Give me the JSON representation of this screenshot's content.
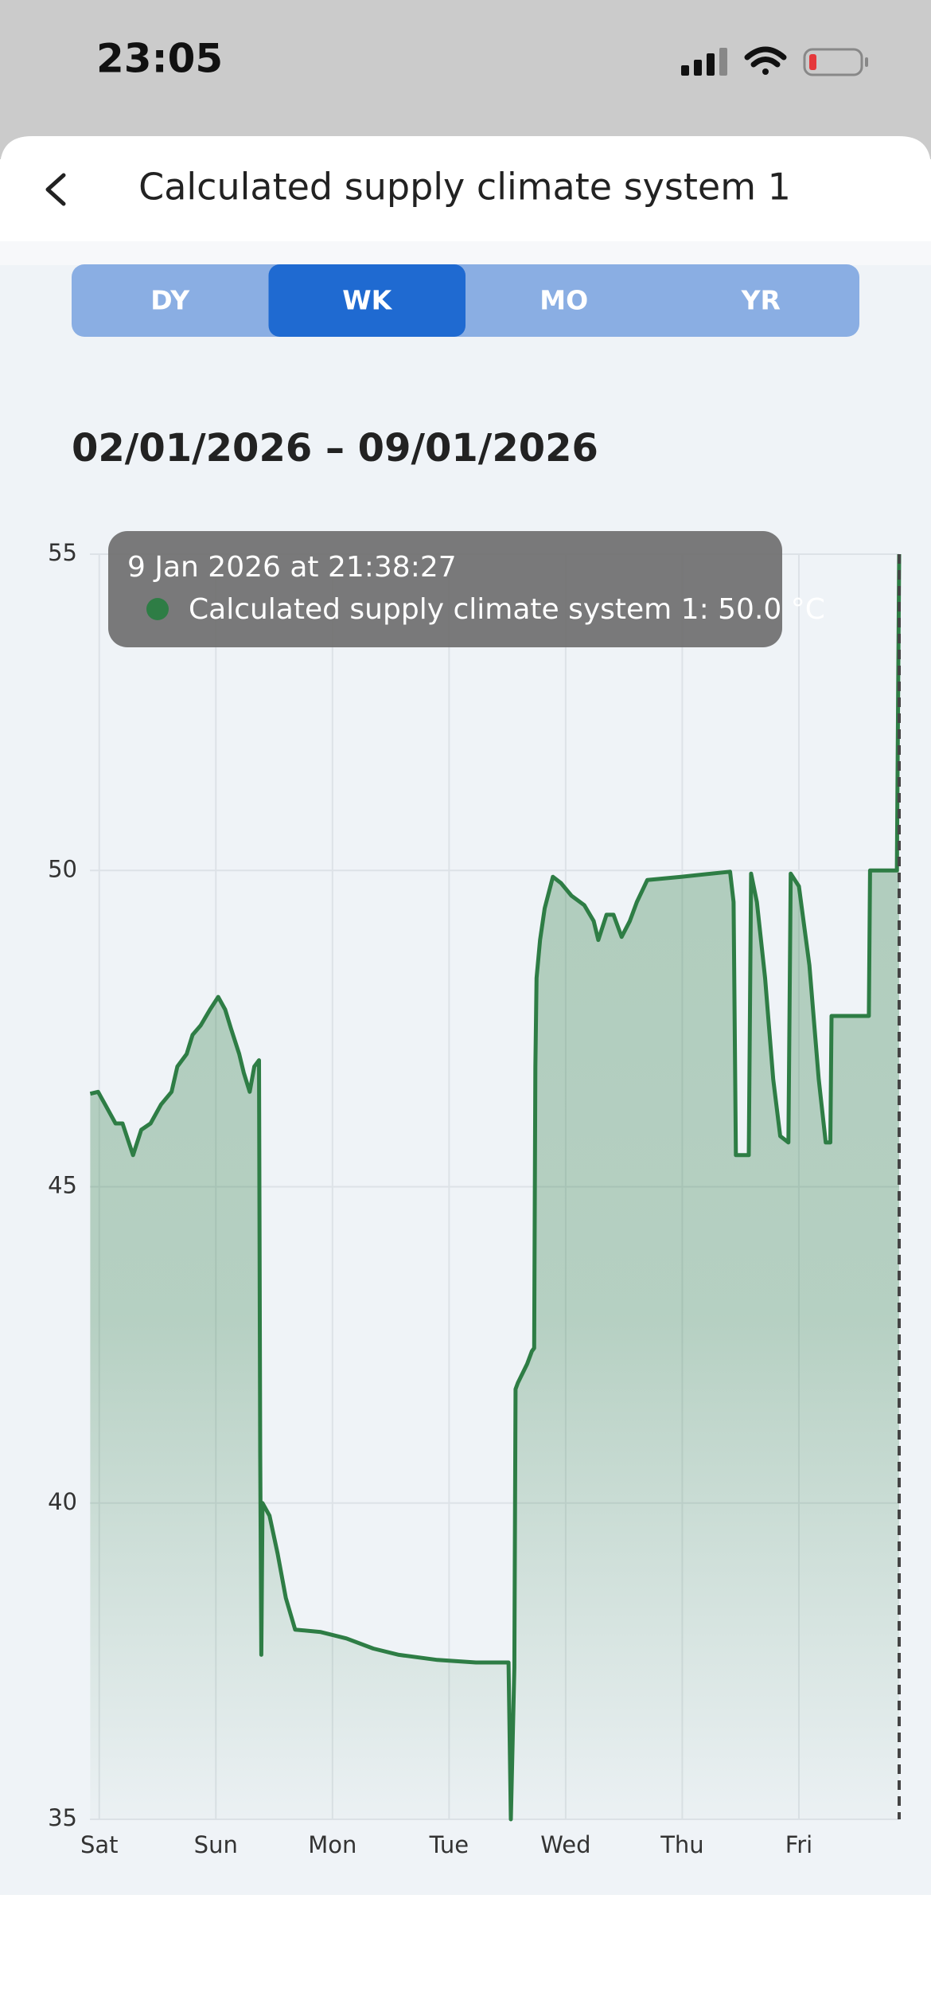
{
  "status_bar": {
    "time": "23:05"
  },
  "header": {
    "title": "Calculated supply climate system 1"
  },
  "tabs": [
    "DY",
    "WK",
    "MO",
    "YR"
  ],
  "selected_tab": "WK",
  "date_range": "02/01/2026 – 09/01/2026",
  "tooltip": {
    "time": "9 Jan 2026 at 21:38:27",
    "label": "Calculated supply climate system 1: 50.0 °C"
  },
  "chart_data": {
    "type": "area",
    "color": "#2e7d45",
    "x": [
      -0.077,
      -0.01,
      0.05,
      0.14,
      0.2,
      0.29,
      0.36,
      0.44,
      0.53,
      0.62,
      0.67,
      0.75,
      0.8,
      0.87,
      0.95,
      1.02,
      1.08,
      1.13,
      1.2,
      1.24,
      1.29,
      1.33,
      1.37,
      1.38,
      1.39,
      1.4,
      1.46,
      1.53,
      1.6,
      1.68,
      1.9,
      2.12,
      2.35,
      2.57,
      2.9,
      3.23,
      3.51,
      3.53,
      3.56,
      3.57,
      3.59,
      3.67,
      3.71,
      3.73,
      3.74,
      3.75,
      3.78,
      3.82,
      3.89,
      3.96,
      4.05,
      4.16,
      4.24,
      4.28,
      4.35,
      4.41,
      4.48,
      4.55,
      4.61,
      4.7,
      4.99,
      5.41,
      5.44,
      5.46,
      5.57,
      5.59,
      5.64,
      5.71,
      5.78,
      5.84,
      5.91,
      5.93,
      6.0,
      6.09,
      6.17,
      6.23,
      6.27,
      6.28,
      6.6,
      6.61,
      6.84,
      6.86
    ],
    "values": [
      46.47,
      46.5,
      46.3,
      46.0,
      46.0,
      45.5,
      45.9,
      46.0,
      46.3,
      46.5,
      46.9,
      47.1,
      47.4,
      47.55,
      47.8,
      48.0,
      47.8,
      47.5,
      47.1,
      46.8,
      46.5,
      46.9,
      47.0,
      40.8,
      37.6,
      40.0,
      39.8,
      39.2,
      38.5,
      38.0,
      37.96,
      37.86,
      37.7,
      37.6,
      37.52,
      37.48,
      37.48,
      35.0,
      37.4,
      41.8,
      41.9,
      42.2,
      42.4,
      42.45,
      46.9,
      48.3,
      48.9,
      49.4,
      49.9,
      49.8,
      49.6,
      49.45,
      49.2,
      48.9,
      49.3,
      49.3,
      48.95,
      49.2,
      49.5,
      49.85,
      49.9,
      49.98,
      49.5,
      45.5,
      45.5,
      49.95,
      49.5,
      48.3,
      46.7,
      45.8,
      45.7,
      49.95,
      49.75,
      48.5,
      46.7,
      45.7,
      45.7,
      47.7,
      47.7,
      50.0,
      50.0,
      55.0
    ],
    "xlim": [
      -0.08,
      6.86
    ],
    "xticks": [
      {
        "value": 0,
        "label": "Sat"
      },
      {
        "value": 1,
        "label": "Sun"
      },
      {
        "value": 2,
        "label": "Mon"
      },
      {
        "value": 3,
        "label": "Tue"
      },
      {
        "value": 4,
        "label": "Wed"
      },
      {
        "value": 5,
        "label": "Thu"
      },
      {
        "value": 6,
        "label": "Fri"
      }
    ],
    "ylim": [
      35,
      55
    ],
    "yticks": [
      35,
      40,
      45,
      50,
      55
    ],
    "grid": true
  }
}
